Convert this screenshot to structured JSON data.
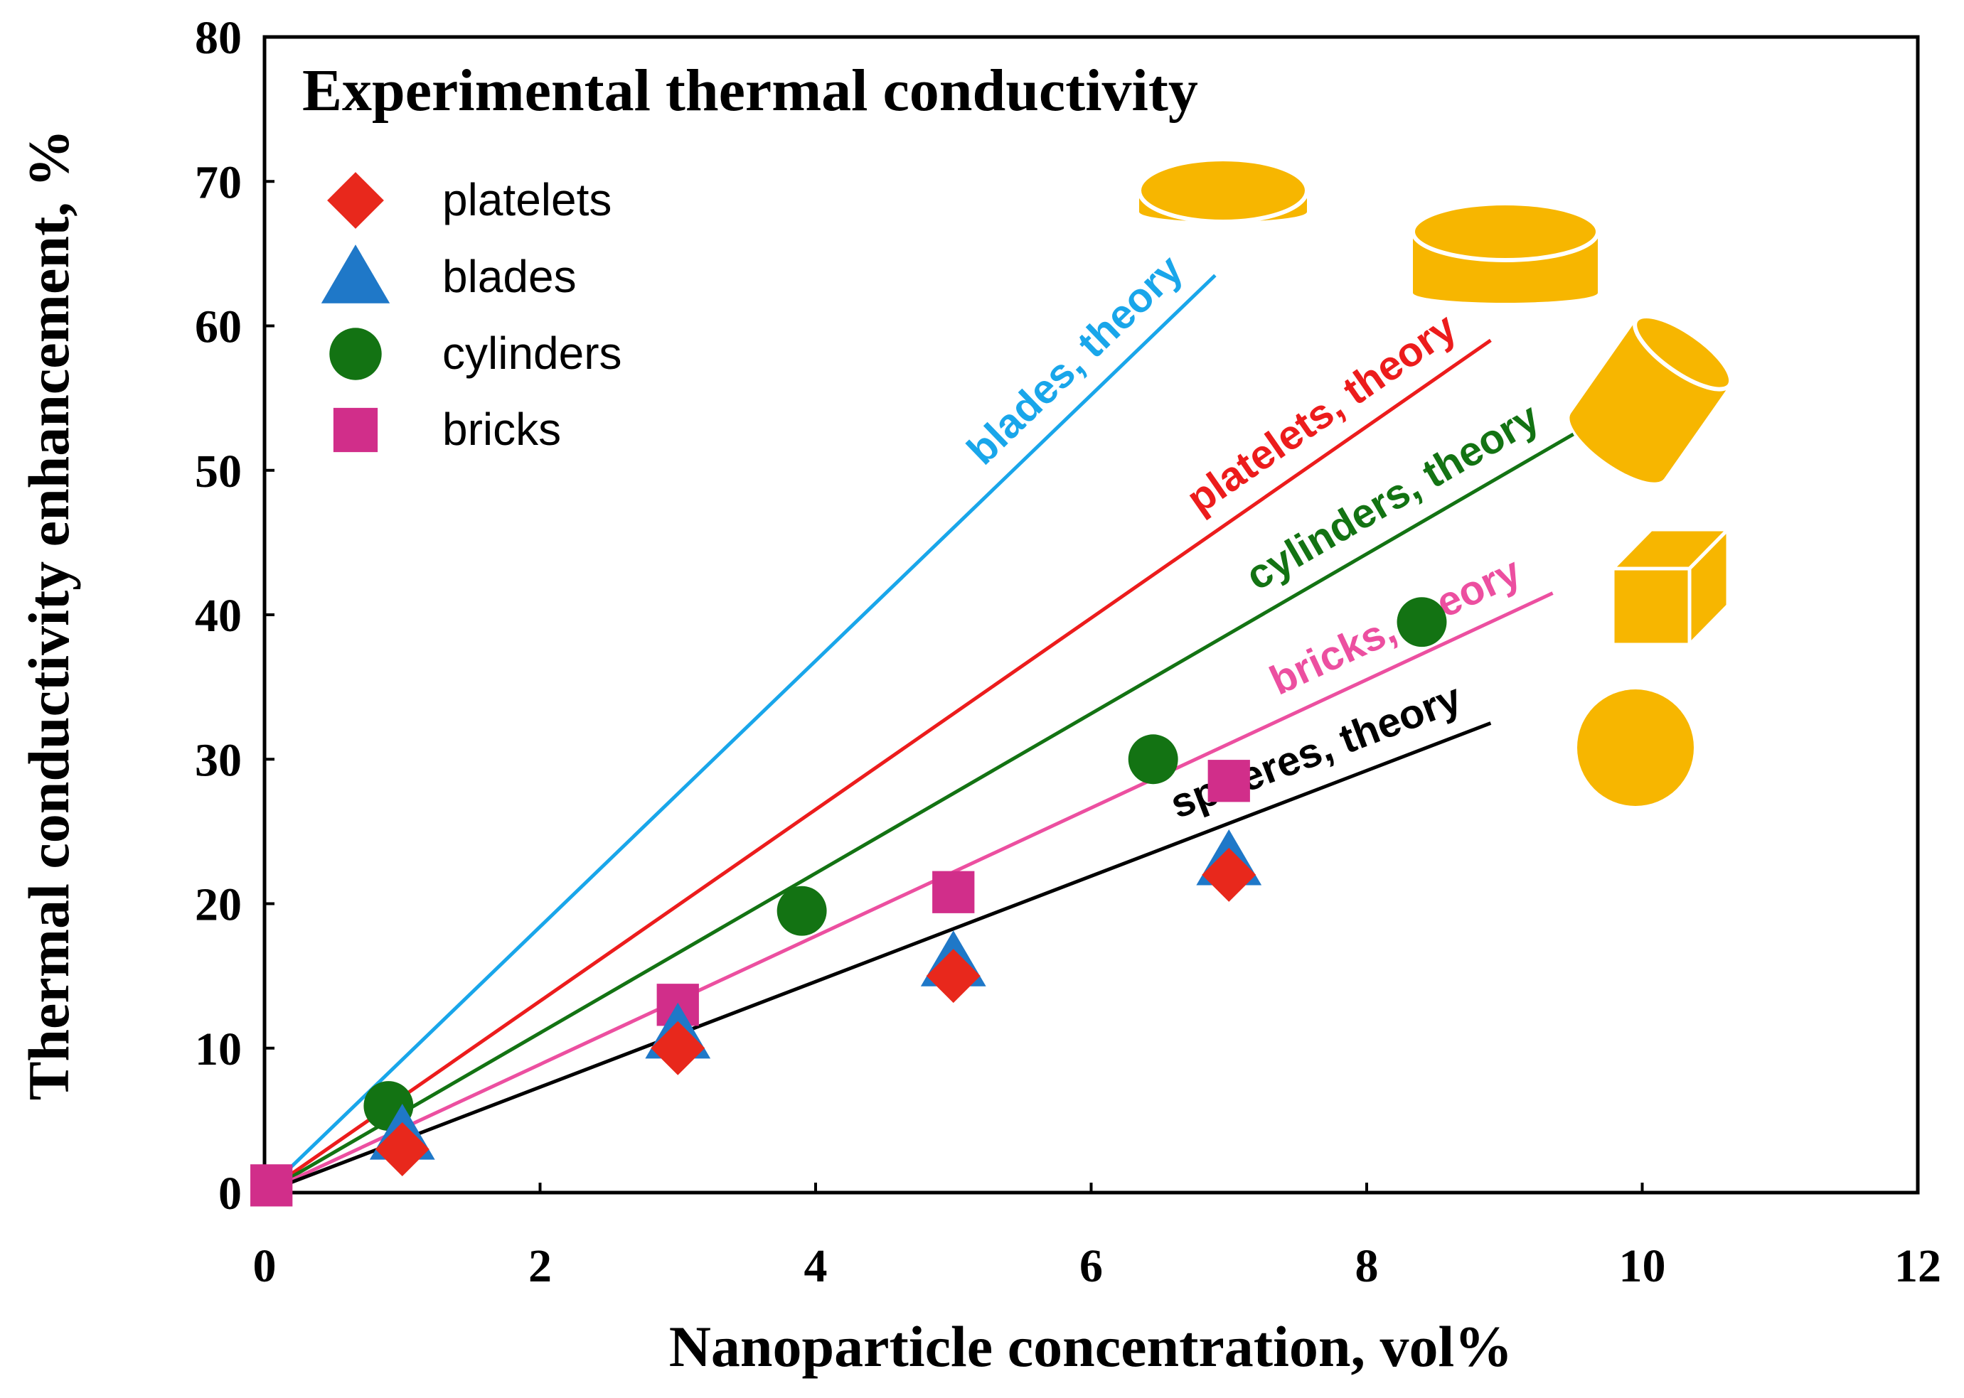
{
  "chart_data": {
    "type": "scatter",
    "title": "Experimental thermal conductivity",
    "xlabel": "Nanoparticle concentration, vol%",
    "ylabel": "Thermal conductivity enhancement, %",
    "xlim": [
      0,
      12
    ],
    "ylim": [
      0,
      80
    ],
    "xticks": [
      0,
      2,
      4,
      6,
      8,
      10,
      12
    ],
    "yticks": [
      0,
      10,
      20,
      30,
      40,
      50,
      60,
      70,
      80
    ],
    "grid": false,
    "legend_position": "top-left",
    "series": [
      {
        "name": "platelets",
        "marker": "diamond",
        "color": "#e8281c",
        "x": [
          1,
          3,
          5,
          7
        ],
        "y": [
          3,
          10,
          15,
          22
        ]
      },
      {
        "name": "blades",
        "marker": "triangle",
        "color": "#1f78c8",
        "x": [
          1,
          3,
          5,
          7
        ],
        "y": [
          4,
          11,
          16,
          23
        ]
      },
      {
        "name": "cylinders",
        "marker": "circle",
        "color": "#137313",
        "x": [
          0.9,
          3.9,
          6.45,
          8.4
        ],
        "y": [
          6,
          19.5,
          30,
          39.5
        ]
      },
      {
        "name": "bricks",
        "marker": "square",
        "color": "#d12e8a",
        "x": [
          0.05,
          3,
          5,
          7
        ],
        "y": [
          0.5,
          13,
          20.8,
          28.5
        ]
      }
    ],
    "theory_lines": [
      {
        "label": "blades, theory",
        "color": "#19a6ea",
        "x": [
          0,
          6.9
        ],
        "y": [
          0,
          63.5
        ]
      },
      {
        "label": "platelets, theory",
        "color": "#ec1c1c",
        "x": [
          0,
          8.9
        ],
        "y": [
          0,
          59
        ]
      },
      {
        "label": "cylinders, theory",
        "color": "#137313",
        "x": [
          0,
          9.5
        ],
        "y": [
          0,
          52.5
        ]
      },
      {
        "label": "bricks, theory",
        "color": "#ec4fa0",
        "x": [
          0,
          9.35
        ],
        "y": [
          0,
          41.5
        ]
      },
      {
        "label": "spheres, theory",
        "color": "#000000",
        "x": [
          0,
          8.9
        ],
        "y": [
          0,
          32.5
        ]
      }
    ],
    "shape_icon_color": "#f7b600",
    "shape_icons": [
      "platelet-disc",
      "blade-disc",
      "cylinder",
      "brick",
      "sphere"
    ]
  }
}
